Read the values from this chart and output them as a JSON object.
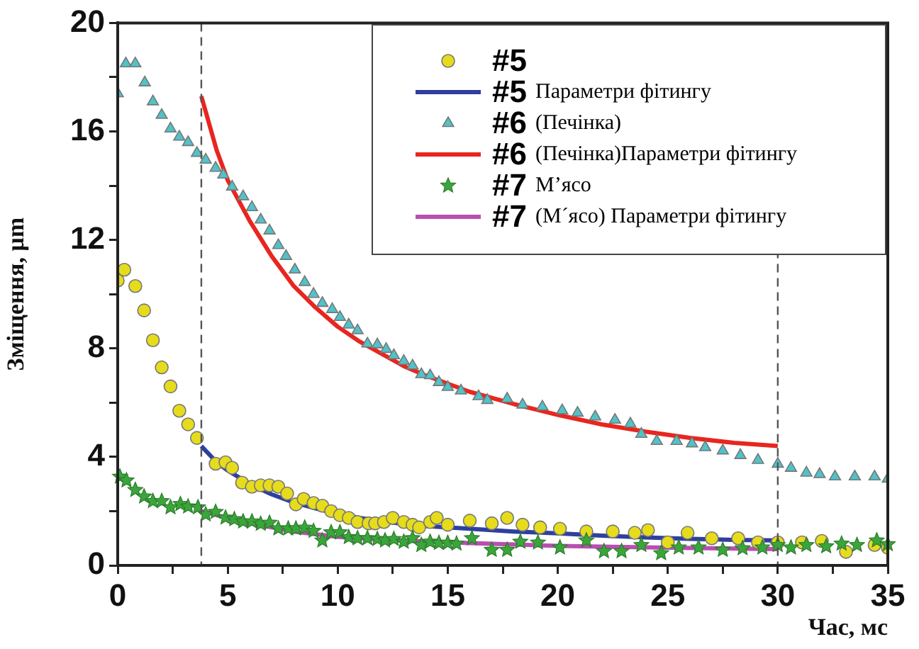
{
  "chart_data": {
    "type": "scatter",
    "xlabel": "Час, мс",
    "ylabel": "Зміщення, μm",
    "xlim": [
      0,
      35
    ],
    "xticks": [
      0,
      {
        "value": 2.5,
        "label": null
      },
      5,
      {
        "value": 7.5,
        "label": null
      },
      10,
      {
        "value": 12.5,
        "label": null
      },
      15,
      {
        "value": 17.5,
        "label": null
      },
      20,
      {
        "value": 22.5,
        "label": null
      },
      25,
      {
        "value": 27.5,
        "label": null
      },
      30,
      {
        "value": 32.5,
        "label": null
      },
      35
    ],
    "ylim": [
      0,
      20
    ],
    "yticks": [
      0,
      {
        "value": 2,
        "label": null
      },
      4,
      {
        "value": 6,
        "label": null
      },
      8,
      {
        "value": 10,
        "label": null
      },
      12,
      {
        "value": 14,
        "label": null
      },
      16,
      {
        "value": 18,
        "label": null
      },
      20
    ],
    "grid": false,
    "legend": "top right",
    "ref_lines": [
      {
        "axis": "x",
        "value": 3.8,
        "color": "#555555",
        "line_style": "dashed"
      },
      {
        "axis": "x",
        "value": 30,
        "color": "#555555",
        "line_style": "dashed"
      }
    ],
    "series": [
      {
        "name": "#5",
        "marker": "circle",
        "color": "#e6dc1c",
        "x": [
          0,
          0.3,
          0.8,
          1.2,
          1.6,
          2.0,
          2.4,
          2.8,
          3.2,
          3.6,
          4.45,
          4.9,
          5.2,
          5.65,
          6.1,
          6.5,
          6.9,
          7.3,
          7.7,
          8.1,
          8.45,
          8.9,
          9.3,
          9.7,
          10.1,
          10.5,
          10.9,
          11.4,
          11.7,
          12.1,
          12.5,
          13,
          13.4,
          13.7,
          14.2,
          14.5,
          15,
          16,
          17,
          17.7,
          18.4,
          19.2,
          20.1,
          21.3,
          22.5,
          23.5,
          24.1,
          25,
          25.9,
          27,
          28.2,
          29.1,
          30,
          31.1,
          32,
          33.1,
          34.4,
          35
        ],
        "values": [
          10.5,
          10.9,
          10.3,
          9.4,
          8.3,
          7.3,
          6.6,
          5.7,
          5.2,
          4.7,
          3.75,
          3.8,
          3.6,
          3.05,
          2.9,
          2.95,
          2.95,
          2.9,
          2.65,
          2.25,
          2.45,
          2.3,
          2.2,
          2.0,
          1.85,
          1.75,
          1.6,
          1.55,
          1.55,
          1.6,
          1.75,
          1.6,
          1.5,
          1.4,
          1.6,
          1.75,
          1.5,
          1.65,
          1.55,
          1.75,
          1.5,
          1.4,
          1.35,
          1.25,
          1.25,
          1.2,
          1.3,
          0.85,
          1.2,
          1.0,
          1.0,
          0.85,
          0.85,
          0.85,
          0.9,
          0.5,
          0.75,
          0.65
        ]
      },
      {
        "name": "#5 Параметри фітингу",
        "type": "line",
        "color": "#2e3f9e",
        "x": [
          3.8,
          4.5,
          5,
          6,
          7,
          8,
          9,
          10,
          11,
          12,
          14,
          16,
          18,
          20,
          22,
          24,
          26,
          28,
          30
        ],
        "values": [
          4.4,
          3.8,
          3.5,
          3.0,
          2.62,
          2.32,
          2.1,
          1.9,
          1.75,
          1.62,
          1.45,
          1.35,
          1.25,
          1.18,
          1.1,
          1.03,
          0.98,
          0.94,
          0.92
        ]
      },
      {
        "name": "#6 (Печінка)",
        "marker": "triangle",
        "color": "#4fc3c9",
        "x": [
          0,
          0.37,
          0.8,
          1.23,
          1.6,
          2.0,
          2.4,
          2.8,
          3.2,
          3.6,
          4.0,
          4.45,
          4.8,
          5.2,
          5.7,
          6.1,
          6.5,
          6.9,
          7.3,
          7.65,
          8.05,
          8.5,
          8.9,
          9.3,
          9.75,
          10.1,
          10.5,
          10.9,
          11.35,
          11.8,
          12.2,
          12.55,
          13,
          13.4,
          13.8,
          14.2,
          14.6,
          15,
          15.6,
          16.4,
          16.8,
          17.7,
          18.4,
          19.3,
          20.2,
          20.9,
          21.7,
          22.6,
          23.3,
          23.8,
          24.5,
          25.4,
          26.1,
          26.7,
          27.5,
          28.3,
          29.1,
          30,
          30.6,
          31.3,
          31.9,
          32.6,
          33.5,
          34.4,
          35
        ],
        "values": [
          17.4,
          18.5,
          18.5,
          17.8,
          17.1,
          16.6,
          16.1,
          15.8,
          15.6,
          15.2,
          14.95,
          14.65,
          14.4,
          13.96,
          13.6,
          13.2,
          12.74,
          12.34,
          11.8,
          11.4,
          10.9,
          10.44,
          10.0,
          9.67,
          9.44,
          9.15,
          8.87,
          8.66,
          8.17,
          8.14,
          7.97,
          7.74,
          7.53,
          7.36,
          7.04,
          7.0,
          6.75,
          6.57,
          6.44,
          6.23,
          6.09,
          6.14,
          5.92,
          5.85,
          5.71,
          5.62,
          5.48,
          5.36,
          5.22,
          4.84,
          4.58,
          4.58,
          4.49,
          4.35,
          4.23,
          4.06,
          3.88,
          3.74,
          3.59,
          3.41,
          3.36,
          3.27,
          3.27,
          3.27,
          3.19
        ]
      },
      {
        "name": "#6 (Печінка)Параметри фітингу",
        "type": "line",
        "color": "#e8261f",
        "x": [
          3.8,
          4.5,
          5,
          6,
          7,
          8,
          9,
          10,
          11,
          12,
          13,
          14,
          15,
          16,
          18,
          20,
          22,
          24,
          26,
          28,
          30
        ],
        "values": [
          17.3,
          15.3,
          14.2,
          12.7,
          11.4,
          10.3,
          9.5,
          8.8,
          8.25,
          7.8,
          7.35,
          7.0,
          6.7,
          6.4,
          5.95,
          5.55,
          5.2,
          4.93,
          4.7,
          4.52,
          4.4
        ]
      },
      {
        "name": "#7 М’ясо",
        "marker": "star",
        "color": "#3aa63a",
        "x": [
          0.1,
          0.4,
          0.8,
          1.2,
          1.6,
          2.0,
          2.4,
          2.85,
          3.2,
          3.65,
          4.0,
          4.45,
          4.9,
          5.3,
          5.7,
          6.1,
          6.5,
          6.9,
          7.3,
          7.75,
          8.1,
          8.5,
          8.9,
          9.3,
          9.7,
          10.1,
          10.5,
          10.9,
          11.35,
          11.8,
          12.15,
          12.55,
          13,
          13.4,
          13.8,
          14.2,
          14.6,
          15,
          15.4,
          16.1,
          17,
          17.7,
          18.3,
          19.1,
          20.1,
          21.3,
          22.1,
          22.9,
          23.8,
          24.7,
          25.5,
          26.4,
          27.5,
          28.4,
          29.3,
          30,
          30.6,
          31.3,
          32.2,
          32.9,
          33.6,
          34.5,
          35
        ],
        "values": [
          3.27,
          3.13,
          2.78,
          2.54,
          2.37,
          2.37,
          2.14,
          2.26,
          2.17,
          2.14,
          1.88,
          1.97,
          1.76,
          1.7,
          1.62,
          1.62,
          1.53,
          1.57,
          1.36,
          1.36,
          1.36,
          1.39,
          1.27,
          0.92,
          1.22,
          1.22,
          1.04,
          1.0,
          1.0,
          0.97,
          0.92,
          0.97,
          0.87,
          1.0,
          0.75,
          0.87,
          0.83,
          0.83,
          0.8,
          1.0,
          0.57,
          0.57,
          0.87,
          0.84,
          0.66,
          0.92,
          0.52,
          0.52,
          0.75,
          0.45,
          0.66,
          0.66,
          0.57,
          0.63,
          0.66,
          0.75,
          0.66,
          0.75,
          0.7,
          0.8,
          0.75,
          0.92,
          0.78
        ]
      },
      {
        "name": "#7 (М´ясо) Параметри фітингу",
        "type": "line",
        "color": "#b84fb0",
        "x": [
          3.8,
          5,
          6,
          7,
          8,
          10,
          12,
          14,
          16,
          20,
          25,
          30
        ],
        "values": [
          2.0,
          1.75,
          1.55,
          1.4,
          1.25,
          1.05,
          0.95,
          0.88,
          0.82,
          0.72,
          0.65,
          0.6
        ]
      }
    ]
  }
}
